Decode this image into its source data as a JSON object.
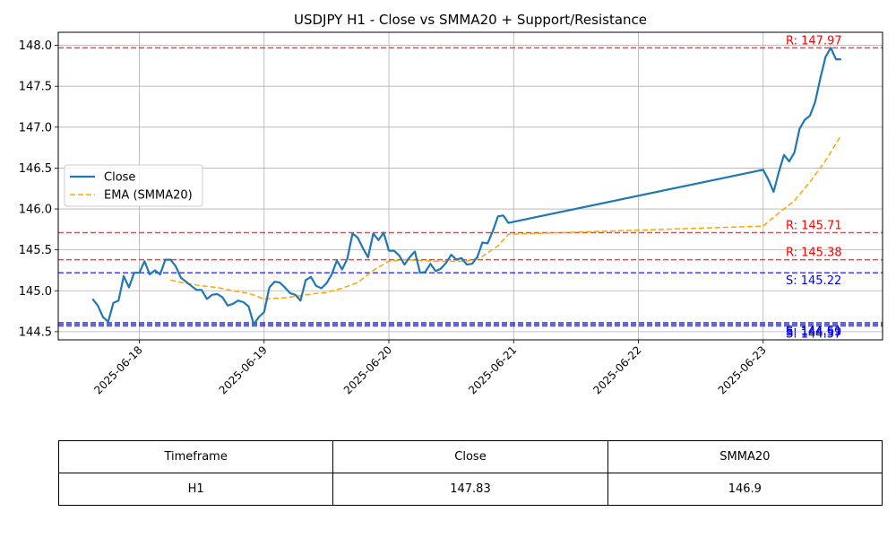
{
  "chart_data": {
    "type": "line",
    "title": "USDJPY H1 - Close vs SMMA20 + Support/Resistance",
    "x_ticks": [
      "2025-06-18",
      "2025-06-19",
      "2025-06-20",
      "2025-06-21",
      "2025-06-22",
      "2025-06-23"
    ],
    "xlim": [
      "2025-06-17 08:24",
      "2025-06-23 22:58"
    ],
    "y_ticks": [
      "144.5",
      "145.0",
      "145.5",
      "146.0",
      "146.5",
      "147.0",
      "147.5",
      "148.0"
    ],
    "ylim": [
      144.4,
      148.16
    ],
    "grid": true,
    "legend_position": "center-left",
    "series": [
      {
        "name": "Close",
        "color": "#1f77b4",
        "style": "solid",
        "x": [
          "2025-06-17 15:00",
          "2025-06-17 16:00",
          "2025-06-17 17:00",
          "2025-06-17 18:00",
          "2025-06-17 19:00",
          "2025-06-17 20:00",
          "2025-06-17 21:00",
          "2025-06-17 22:00",
          "2025-06-17 23:00",
          "2025-06-18 00:00",
          "2025-06-18 01:00",
          "2025-06-18 02:00",
          "2025-06-18 03:00",
          "2025-06-18 04:00",
          "2025-06-18 05:00",
          "2025-06-18 06:00",
          "2025-06-18 07:00",
          "2025-06-18 08:00",
          "2025-06-18 09:00",
          "2025-06-18 10:00",
          "2025-06-18 11:00",
          "2025-06-18 12:00",
          "2025-06-18 13:00",
          "2025-06-18 14:00",
          "2025-06-18 15:00",
          "2025-06-18 16:00",
          "2025-06-18 17:00",
          "2025-06-18 18:00",
          "2025-06-18 19:00",
          "2025-06-18 20:00",
          "2025-06-18 21:00",
          "2025-06-18 22:00",
          "2025-06-18 23:00",
          "2025-06-19 00:00",
          "2025-06-19 01:00",
          "2025-06-19 02:00",
          "2025-06-19 03:00",
          "2025-06-19 04:00",
          "2025-06-19 05:00",
          "2025-06-19 06:00",
          "2025-06-19 07:00",
          "2025-06-19 08:00",
          "2025-06-19 09:00",
          "2025-06-19 10:00",
          "2025-06-19 11:00",
          "2025-06-19 12:00",
          "2025-06-19 13:00",
          "2025-06-19 14:00",
          "2025-06-19 15:00",
          "2025-06-19 16:00",
          "2025-06-19 17:00",
          "2025-06-19 18:00",
          "2025-06-19 19:00",
          "2025-06-19 20:00",
          "2025-06-19 21:00",
          "2025-06-19 22:00",
          "2025-06-19 23:00",
          "2025-06-20 00:00",
          "2025-06-20 01:00",
          "2025-06-20 02:00",
          "2025-06-20 03:00",
          "2025-06-20 04:00",
          "2025-06-20 05:00",
          "2025-06-20 06:00",
          "2025-06-20 07:00",
          "2025-06-20 08:00",
          "2025-06-20 09:00",
          "2025-06-20 10:00",
          "2025-06-20 11:00",
          "2025-06-20 12:00",
          "2025-06-20 13:00",
          "2025-06-20 14:00",
          "2025-06-20 15:00",
          "2025-06-20 16:00",
          "2025-06-20 17:00",
          "2025-06-20 18:00",
          "2025-06-20 19:00",
          "2025-06-20 20:00",
          "2025-06-20 21:00",
          "2025-06-20 22:00",
          "2025-06-20 23:00",
          "2025-06-23 00:00",
          "2025-06-23 01:00",
          "2025-06-23 02:00",
          "2025-06-23 03:00",
          "2025-06-23 04:00",
          "2025-06-23 05:00",
          "2025-06-23 06:00",
          "2025-06-23 07:00",
          "2025-06-23 08:00",
          "2025-06-23 09:00",
          "2025-06-23 10:00",
          "2025-06-23 11:00",
          "2025-06-23 12:00",
          "2025-06-23 13:00",
          "2025-06-23 14:00",
          "2025-06-23 15:00"
        ],
        "values": [
          144.9,
          144.82,
          144.68,
          144.62,
          144.85,
          144.88,
          145.18,
          145.04,
          145.22,
          145.22,
          145.36,
          145.2,
          145.25,
          145.2,
          145.38,
          145.38,
          145.3,
          145.16,
          145.11,
          145.06,
          145.01,
          145.01,
          144.9,
          144.95,
          144.96,
          144.92,
          144.82,
          144.84,
          144.88,
          144.86,
          144.81,
          144.59,
          144.68,
          144.74,
          145.04,
          145.11,
          145.1,
          145.04,
          144.97,
          144.95,
          144.88,
          145.13,
          145.17,
          145.06,
          145.03,
          145.09,
          145.2,
          145.37,
          145.26,
          145.39,
          145.7,
          145.65,
          145.52,
          145.41,
          145.7,
          145.62,
          145.71,
          145.49,
          145.49,
          145.43,
          145.32,
          145.41,
          145.48,
          145.22,
          145.23,
          145.33,
          145.24,
          145.27,
          145.34,
          145.44,
          145.38,
          145.4,
          145.32,
          145.33,
          145.41,
          145.59,
          145.58,
          145.73,
          145.91,
          145.92,
          145.83,
          146.48,
          146.36,
          146.21,
          146.45,
          146.66,
          146.58,
          146.69,
          146.98,
          147.09,
          147.14,
          147.31,
          147.6,
          147.86,
          147.97,
          147.83,
          147.83
        ],
        "note_points": "last two close points coincide"
      },
      {
        "name": "EMA (SMMA20)",
        "color": "#ffa500",
        "style": "dashed",
        "x": [
          "2025-06-18 06:00",
          "2025-06-18 09:00",
          "2025-06-18 12:00",
          "2025-06-18 15:00",
          "2025-06-18 18:00",
          "2025-06-18 21:00",
          "2025-06-19 00:00",
          "2025-06-19 03:00",
          "2025-06-19 06:00",
          "2025-06-19 09:00",
          "2025-06-19 12:00",
          "2025-06-19 15:00",
          "2025-06-19 18:00",
          "2025-06-19 21:00",
          "2025-06-20 00:00",
          "2025-06-20 03:00",
          "2025-06-20 06:00",
          "2025-06-20 09:00",
          "2025-06-20 12:00",
          "2025-06-20 15:00",
          "2025-06-20 18:00",
          "2025-06-20 21:00",
          "2025-06-20 23:00",
          "2025-06-23 00:00",
          "2025-06-23 03:00",
          "2025-06-23 06:00",
          "2025-06-23 09:00",
          "2025-06-23 12:00",
          "2025-06-23 15:00"
        ],
        "values": [
          145.13,
          145.09,
          145.06,
          145.04,
          145.0,
          144.97,
          144.9,
          144.91,
          144.93,
          144.96,
          144.98,
          145.03,
          145.1,
          145.25,
          145.36,
          145.38,
          145.37,
          145.36,
          145.36,
          145.36,
          145.42,
          145.55,
          145.69,
          145.79,
          145.95,
          146.1,
          146.33,
          146.59,
          146.9
        ]
      }
    ],
    "levels": [
      {
        "kind": "resistance",
        "value": 147.97,
        "label": "R: 147.97",
        "color": "#ff0000"
      },
      {
        "kind": "resistance",
        "value": 145.71,
        "label": "R: 145.71",
        "color": "#ff0000"
      },
      {
        "kind": "resistance",
        "value": 145.38,
        "label": "R: 145.38",
        "color": "#ff0000"
      },
      {
        "kind": "support",
        "value": 145.22,
        "label": "S: 145.22",
        "color": "#0000ff"
      },
      {
        "kind": "support",
        "value": 144.61,
        "label": "S: 144.61",
        "color": "#0000ff"
      },
      {
        "kind": "support",
        "value": 144.59,
        "label": "S: 144.59",
        "color": "#0000ff"
      },
      {
        "kind": "support",
        "value": 144.57,
        "label": "S: 144.57",
        "color": "#0000ff"
      }
    ]
  },
  "table": {
    "headers": [
      "Timeframe",
      "Close",
      "SMMA20"
    ],
    "rows": [
      [
        "H1",
        "147.83",
        "146.9"
      ]
    ]
  }
}
